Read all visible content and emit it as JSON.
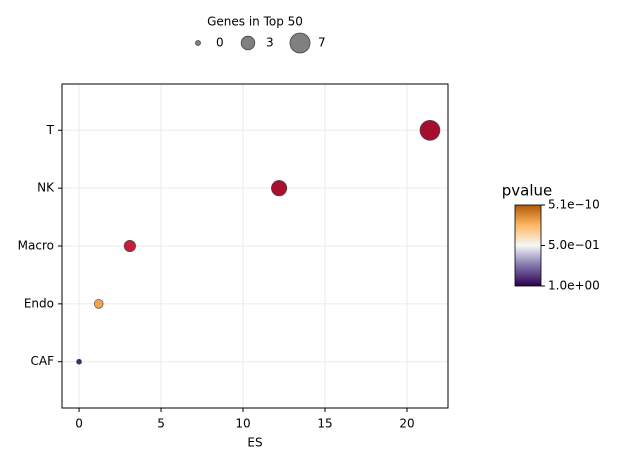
{
  "chart_data": {
    "type": "scatter",
    "xlabel": "ES",
    "categories": [
      "CAF",
      "Endo",
      "Macro",
      "NK",
      "T"
    ],
    "series": [
      {
        "values": [
          0,
          1.2,
          3.1,
          12.2,
          21.4
        ],
        "sizes": [
          0,
          1,
          2,
          4,
          7
        ],
        "colors": [
          "#3b2a7a",
          "#f1a450",
          "#c41e3a",
          "#a8102e",
          "#a50f2d"
        ]
      }
    ],
    "xlim": [
      -1.04,
      22.5
    ],
    "xticks": [
      0,
      5,
      10,
      15,
      20
    ],
    "grid": true,
    "size_legend": {
      "title": "Genes in Top 50",
      "values": [
        0,
        3,
        7
      ]
    },
    "colorbar": {
      "title": "pvalue",
      "colormap": [
        "#2d004b",
        "#8073ac",
        "#f7f7f7",
        "#fdb863",
        "#b35806"
      ],
      "clim": [
        1,
        5.1e-10
      ],
      "ticks": [
        {
          "value": 5.1e-10,
          "label": "5.1e−10"
        },
        {
          "value": 0.5,
          "label": "5.0e−01"
        },
        {
          "value": 1,
          "label": "1.0e+00"
        }
      ]
    }
  }
}
